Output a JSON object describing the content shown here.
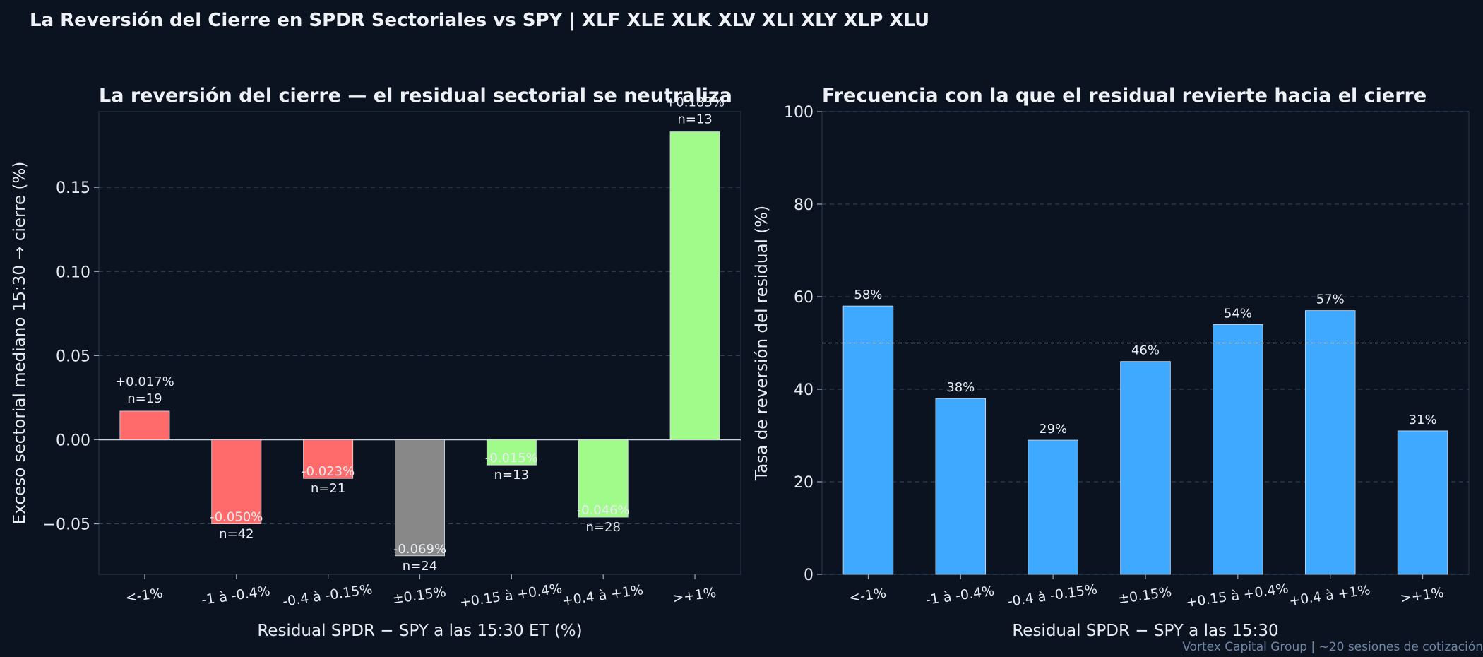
{
  "suptitle": "La Reversión del Cierre en SPDR Sectoriales  vs  SPY  |  XLF XLE XLK XLV XLI XLY XLP XLU",
  "footer": "Vortex Capital Group  |  ~20 sesiones de cotización",
  "colors": {
    "bg": "#0b1320",
    "axis": "#1e2c3e",
    "grid": "#33455c",
    "red": "#ff6b6b",
    "green": "#a0fb8a",
    "gray": "#888888",
    "blue": "#3fa9ff"
  },
  "chart_data": [
    {
      "type": "bar",
      "title": "La reversión del cierre  —  el residual sectorial se neutraliza",
      "xlabel": "Residual SPDR − SPY a las 15:30 ET (%)",
      "ylabel": "Exceso sectorial mediano 15:30 → cierre (%)",
      "categories": [
        "<-1%",
        "-1 à -0.4%",
        "-0.4 à -0.15%",
        "±0.15%",
        "+0.15 à +0.4%",
        "+0.4 à +1%",
        ">+1%"
      ],
      "values": [
        0.017,
        -0.05,
        -0.023,
        -0.069,
        -0.015,
        -0.046,
        0.183
      ],
      "value_labels": [
        "+0.017%",
        "-0.050%",
        "-0.023%",
        "-0.069%",
        "-0.015%",
        "-0.046%",
        "+0.183%"
      ],
      "n_labels": [
        "n=19",
        "n=42",
        "n=21",
        "n=24",
        "n=13",
        "n=28",
        "n=13"
      ],
      "bar_colors": [
        "red",
        "red",
        "red",
        "gray",
        "green",
        "green",
        "green"
      ],
      "ylim": [
        -0.08,
        0.195
      ],
      "yticks": [
        -0.05,
        0.0,
        0.05,
        0.1,
        0.15
      ],
      "ytick_labels": [
        "−0.05",
        "0.00",
        "0.05",
        "0.10",
        "0.15"
      ],
      "grid": true
    },
    {
      "type": "bar",
      "title": "Frecuencia con la que el residual revierte hacia el cierre",
      "xlabel": "Residual SPDR − SPY a las 15:30",
      "ylabel": "Tasa de reversión del residual (%)",
      "categories": [
        "<-1%",
        "-1 à -0.4%",
        "-0.4 à -0.15%",
        "±0.15%",
        "+0.15 à +0.4%",
        "+0.4 à +1%",
        ">+1%"
      ],
      "values": [
        58,
        38,
        29,
        46,
        54,
        57,
        31
      ],
      "value_labels": [
        "58%",
        "38%",
        "29%",
        "46%",
        "54%",
        "57%",
        "31%"
      ],
      "reference_line": 50,
      "ylim": [
        0,
        100
      ],
      "yticks": [
        0,
        20,
        40,
        60,
        80,
        100
      ],
      "ytick_labels": [
        "0",
        "20",
        "40",
        "60",
        "80",
        "100"
      ],
      "grid": true
    }
  ]
}
